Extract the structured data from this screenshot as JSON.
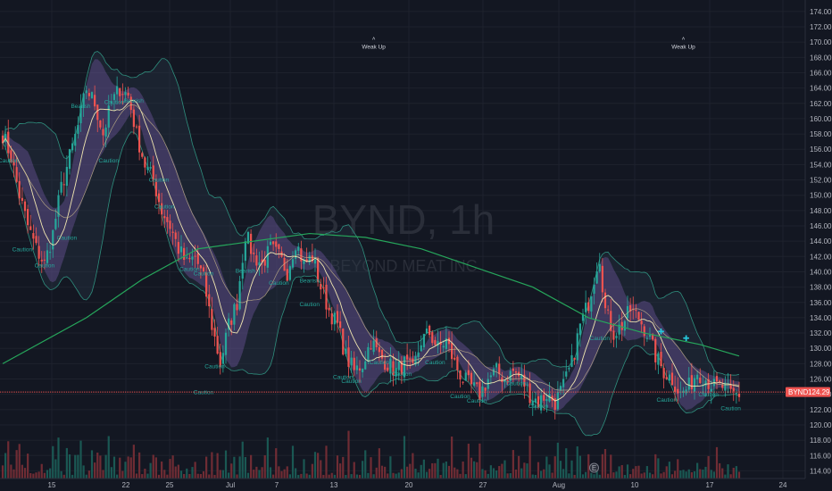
{
  "chart_data": {
    "type": "candlestick",
    "symbol_watermark": "BYND, 1h",
    "company_watermark": "BEYOND MEAT INC",
    "price_tag": {
      "symbol": "BYND",
      "value": "124.29",
      "color": "#ef5350"
    },
    "ylim": [
      113,
      175.5
    ],
    "y_ticks": [
      "114.00",
      "116.00",
      "118.00",
      "120.00",
      "122.00",
      "124.00",
      "126.00",
      "128.00",
      "130.00",
      "132.00",
      "134.00",
      "136.00",
      "138.00",
      "140.00",
      "142.00",
      "144.00",
      "146.00",
      "148.00",
      "150.00",
      "152.00",
      "154.00",
      "156.00",
      "158.00",
      "160.00",
      "162.00",
      "164.00",
      "166.00",
      "168.00",
      "170.00",
      "172.00",
      "174.00"
    ],
    "x_ticks": [
      "15",
      "22",
      "25",
      "Jul",
      "7",
      "13",
      "20",
      "27",
      "Aug",
      "10",
      "17",
      "24"
    ],
    "grid": true,
    "colors": {
      "up": "#26a69a",
      "down": "#ef5350",
      "sma200": "#26a65b",
      "ma_fast": "#f0e6b0",
      "bands": "#9c6fd6",
      "band_outer": "#2f8f7e",
      "background": "#131722"
    },
    "close_path": [
      {
        "bar": 0,
        "close": 158
      },
      {
        "bar": 3,
        "close": 155
      },
      {
        "bar": 6,
        "close": 150
      },
      {
        "bar": 9,
        "close": 146
      },
      {
        "bar": 12,
        "close": 143
      },
      {
        "bar": 15,
        "close": 141
      },
      {
        "bar": 18,
        "close": 145
      },
      {
        "bar": 21,
        "close": 151
      },
      {
        "bar": 24,
        "close": 155
      },
      {
        "bar": 27,
        "close": 159
      },
      {
        "bar": 30,
        "close": 164
      },
      {
        "bar": 33,
        "close": 162
      },
      {
        "bar": 36,
        "close": 158
      },
      {
        "bar": 39,
        "close": 162
      },
      {
        "bar": 42,
        "close": 164
      },
      {
        "bar": 45,
        "close": 163
      },
      {
        "bar": 48,
        "close": 158
      },
      {
        "bar": 51,
        "close": 154
      },
      {
        "bar": 54,
        "close": 152
      },
      {
        "bar": 57,
        "close": 148
      },
      {
        "bar": 60,
        "close": 146
      },
      {
        "bar": 63,
        "close": 143
      },
      {
        "bar": 66,
        "close": 141
      },
      {
        "bar": 69,
        "close": 142
      },
      {
        "bar": 72,
        "close": 139
      },
      {
        "bar": 75,
        "close": 133
      },
      {
        "bar": 78,
        "close": 128
      },
      {
        "bar": 81,
        "close": 133
      },
      {
        "bar": 84,
        "close": 136
      },
      {
        "bar": 87,
        "close": 145
      },
      {
        "bar": 90,
        "close": 142
      },
      {
        "bar": 93,
        "close": 141
      },
      {
        "bar": 96,
        "close": 143
      },
      {
        "bar": 99,
        "close": 142
      },
      {
        "bar": 102,
        "close": 140
      },
      {
        "bar": 105,
        "close": 144
      },
      {
        "bar": 108,
        "close": 141
      },
      {
        "bar": 111,
        "close": 142
      },
      {
        "bar": 114,
        "close": 138
      },
      {
        "bar": 117,
        "close": 135
      },
      {
        "bar": 120,
        "close": 133
      },
      {
        "bar": 123,
        "close": 129
      },
      {
        "bar": 126,
        "close": 127
      },
      {
        "bar": 129,
        "close": 128
      },
      {
        "bar": 132,
        "close": 131
      },
      {
        "bar": 135,
        "close": 129
      },
      {
        "bar": 138,
        "close": 128
      },
      {
        "bar": 141,
        "close": 127
      },
      {
        "bar": 144,
        "close": 128
      },
      {
        "bar": 147,
        "close": 127
      },
      {
        "bar": 150,
        "close": 131
      },
      {
        "bar": 153,
        "close": 132
      },
      {
        "bar": 156,
        "close": 130
      },
      {
        "bar": 159,
        "close": 131
      },
      {
        "bar": 162,
        "close": 128
      },
      {
        "bar": 165,
        "close": 126
      },
      {
        "bar": 168,
        "close": 125
      },
      {
        "bar": 171,
        "close": 124
      },
      {
        "bar": 174,
        "close": 126
      },
      {
        "bar": 177,
        "close": 127
      },
      {
        "bar": 180,
        "close": 126
      },
      {
        "bar": 183,
        "close": 127
      },
      {
        "bar": 186,
        "close": 126
      },
      {
        "bar": 189,
        "close": 124
      },
      {
        "bar": 192,
        "close": 123
      },
      {
        "bar": 195,
        "close": 124
      },
      {
        "bar": 198,
        "close": 123
      },
      {
        "bar": 201,
        "close": 125
      },
      {
        "bar": 204,
        "close": 128
      },
      {
        "bar": 207,
        "close": 133
      },
      {
        "bar": 210,
        "close": 136
      },
      {
        "bar": 213,
        "close": 141
      },
      {
        "bar": 214,
        "close": 142
      },
      {
        "bar": 216,
        "close": 135
      },
      {
        "bar": 219,
        "close": 132
      },
      {
        "bar": 222,
        "close": 133
      },
      {
        "bar": 225,
        "close": 135
      },
      {
        "bar": 228,
        "close": 134
      },
      {
        "bar": 231,
        "close": 132
      },
      {
        "bar": 234,
        "close": 129
      },
      {
        "bar": 237,
        "close": 127
      },
      {
        "bar": 240,
        "close": 126
      },
      {
        "bar": 243,
        "close": 124
      },
      {
        "bar": 246,
        "close": 125
      },
      {
        "bar": 249,
        "close": 127
      },
      {
        "bar": 252,
        "close": 126
      },
      {
        "bar": 255,
        "close": 125
      },
      {
        "bar": 258,
        "close": 125
      },
      {
        "bar": 261,
        "close": 124
      },
      {
        "bar": 264,
        "close": 124
      }
    ],
    "sma200": [
      {
        "bar": 0,
        "value": 128
      },
      {
        "bar": 30,
        "value": 134
      },
      {
        "bar": 50,
        "value": 139
      },
      {
        "bar": 70,
        "value": 143
      },
      {
        "bar": 90,
        "value": 144
      },
      {
        "bar": 110,
        "value": 145
      },
      {
        "bar": 130,
        "value": 144.5
      },
      {
        "bar": 150,
        "value": 143
      },
      {
        "bar": 170,
        "value": 140.5
      },
      {
        "bar": 190,
        "value": 138
      },
      {
        "bar": 210,
        "value": 134
      },
      {
        "bar": 230,
        "value": 132
      },
      {
        "bar": 250,
        "value": 130.5
      },
      {
        "bar": 264,
        "value": 129
      }
    ],
    "annotations": [
      {
        "text": "Caution",
        "bar": 2,
        "price": 154.3
      },
      {
        "text": "Caution",
        "bar": 7,
        "price": 142.7
      },
      {
        "text": "Caution",
        "bar": 15,
        "price": 140.6
      },
      {
        "text": "Caution",
        "bar": 23,
        "price": 144.2
      },
      {
        "text": "Caution",
        "bar": 38,
        "price": 154.3
      },
      {
        "text": "Caution",
        "bar": 56,
        "price": 151.8
      },
      {
        "text": "Caution",
        "bar": 58,
        "price": 148.3
      },
      {
        "text": "Caution",
        "bar": 67,
        "price": 140.1
      },
      {
        "text": "Bearish",
        "bar": 28,
        "price": 161.4
      },
      {
        "text": "Caution",
        "bar": 40,
        "price": 161.9
      },
      {
        "text": "Bearish",
        "bar": 47,
        "price": 162.1
      },
      {
        "text": "Caution",
        "bar": 72,
        "price": 139.5
      },
      {
        "text": "Caution",
        "bar": 76,
        "price": 127.4
      },
      {
        "text": "Caution",
        "bar": 72,
        "price": 124.0
      },
      {
        "text": "Bearish",
        "bar": 87,
        "price": 139.9
      },
      {
        "text": "Caution",
        "bar": 99,
        "price": 138.3
      },
      {
        "text": "Bearish",
        "bar": 110,
        "price": 138.6
      },
      {
        "text": "Caution",
        "bar": 110,
        "price": 135.5
      },
      {
        "text": "Caution",
        "bar": 122,
        "price": 126.0
      },
      {
        "text": "Caution",
        "bar": 125,
        "price": 125.5
      },
      {
        "text": "Caution",
        "bar": 135,
        "price": 127.9
      },
      {
        "text": "Caution",
        "bar": 143,
        "price": 126.4
      },
      {
        "text": "Caution",
        "bar": 155,
        "price": 127.9
      },
      {
        "text": "Caution",
        "bar": 164,
        "price": 123.5
      },
      {
        "text": "Caution",
        "bar": 170,
        "price": 122.9
      },
      {
        "text": "Caution",
        "bar": 184,
        "price": 125.2
      },
      {
        "text": "Caution",
        "bar": 192,
        "price": 122.2
      },
      {
        "text": "Caution",
        "bar": 214,
        "price": 131.1
      },
      {
        "text": "Caution",
        "bar": 238,
        "price": 123.0
      },
      {
        "text": "Caution",
        "bar": 253,
        "price": 123.7
      },
      {
        "text": "Caution",
        "bar": 261,
        "price": 121.9
      }
    ],
    "signals": [
      {
        "text": "Weak Up",
        "bar": 133,
        "price": 169.5
      },
      {
        "text": "Weak Up",
        "bar": 244,
        "price": 169.5
      }
    ],
    "markers": [
      {
        "bar": 236,
        "price": 132.2
      },
      {
        "bar": 245,
        "price": 131.3
      }
    ],
    "event_badge": {
      "bar": 212,
      "label": "E"
    }
  }
}
